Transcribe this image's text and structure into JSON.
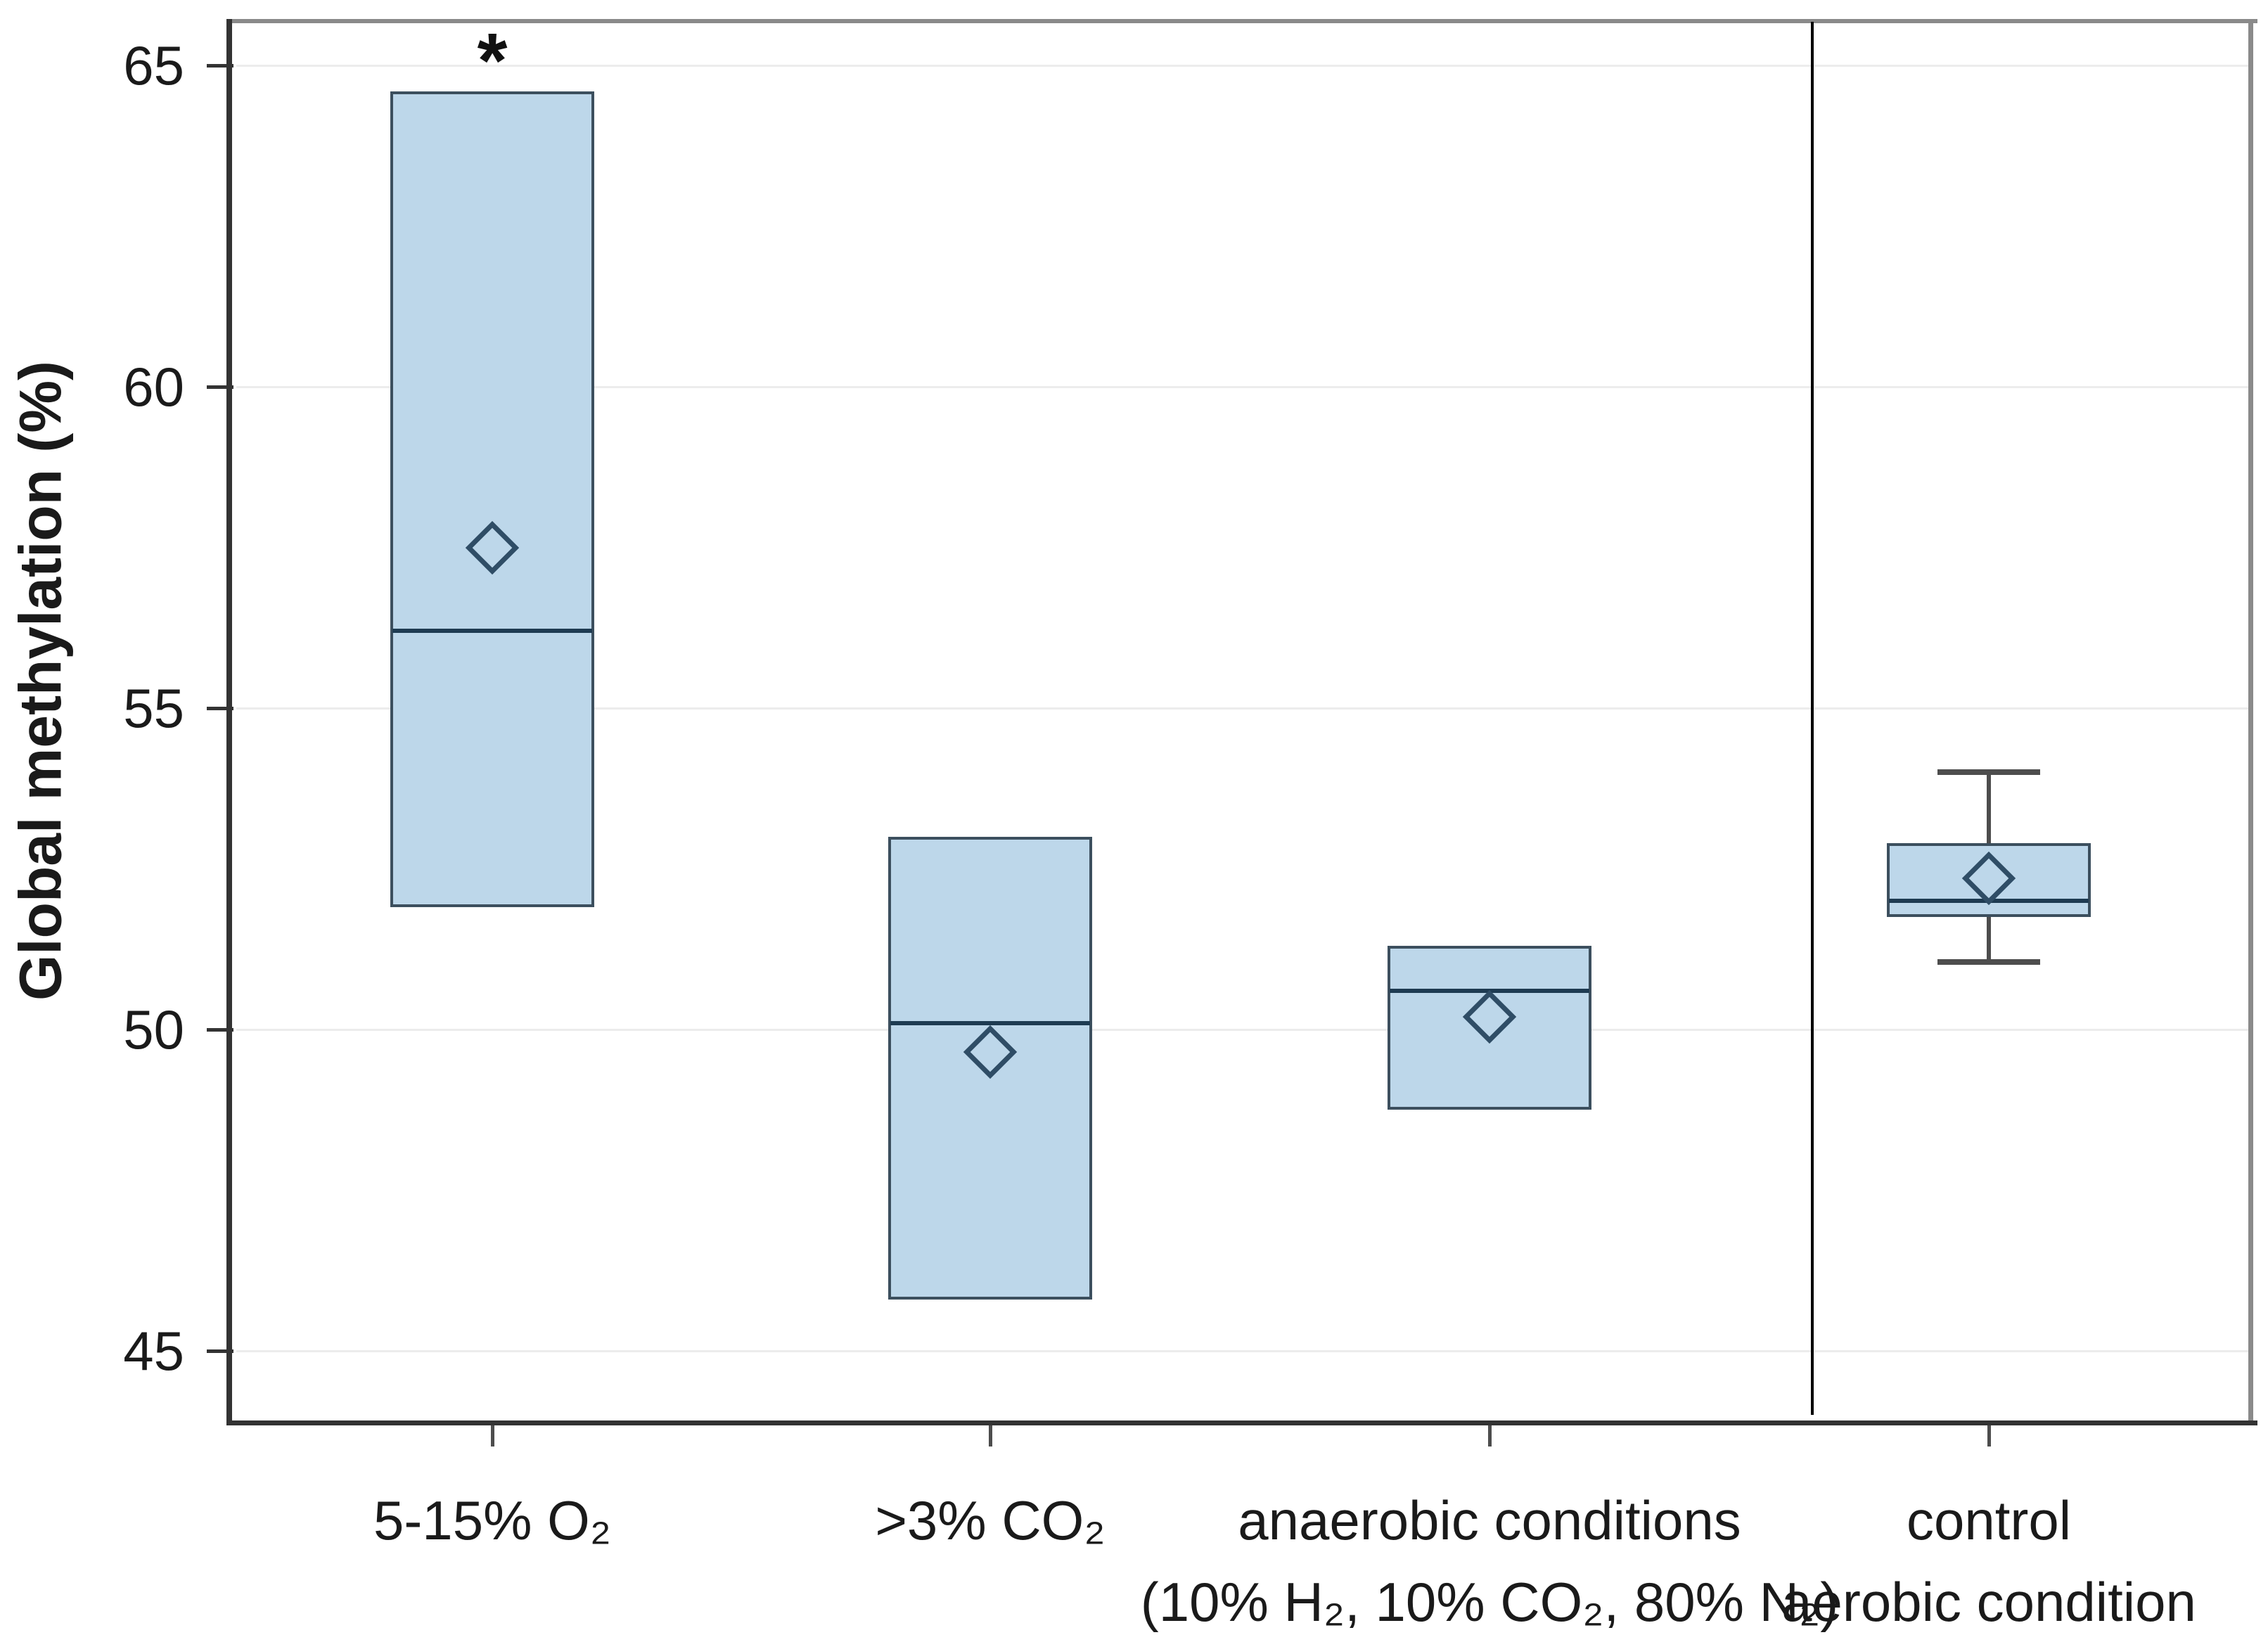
{
  "figure": {
    "background": "#ffffff"
  },
  "chart_data": {
    "type": "box",
    "title": "",
    "ylabel": "Global methylation (%)",
    "xlabel": "",
    "y_axis": {
      "min": 45,
      "max": 65,
      "tick_values": [
        65,
        60,
        55,
        50,
        45
      ],
      "tick_labels": [
        "65",
        "60",
        "55",
        "50",
        "45"
      ],
      "grid": true
    },
    "groups": [
      {
        "label_lines": [
          "5-15% O₂"
        ],
        "q1": 51.9,
        "median": 56.2,
        "q3": 64.6,
        "mean": 57.5,
        "whisker_low": null,
        "whisker_high": null,
        "significance": "*"
      },
      {
        "label_lines": [
          ">3% CO₂"
        ],
        "q1": 45.8,
        "median": 50.1,
        "q3": 53.0,
        "mean": 49.65,
        "whisker_low": null,
        "whisker_high": null,
        "significance": null
      },
      {
        "label_lines": [
          "anaerobic conditions",
          "(10% H₂, 10% CO₂, 80% N₂)"
        ],
        "q1": 48.75,
        "median": 50.6,
        "q3": 51.3,
        "mean": 50.2,
        "whisker_low": null,
        "whisker_high": null,
        "significance": null
      },
      {
        "label_lines": [
          "control",
          "aerobic condition"
        ],
        "q1": 51.75,
        "median": 52.0,
        "q3": 52.9,
        "mean": 52.35,
        "whisker_low": 51.05,
        "whisker_high": 54.0,
        "significance": null
      }
    ],
    "control_divider_before_group": 3,
    "legend": null,
    "colors": {
      "box_fill": "#bdd7ea",
      "box_border": "#3c4f5e",
      "median_line": "#1e3b52",
      "mean_diamond": "#2f4d66",
      "whisker": "#4d4d4d",
      "gridline": "#ececec",
      "axis_dark": "#333333",
      "axis_light": "#8a8a8a",
      "divider": "#000000",
      "text": "#1a1a1a"
    }
  }
}
